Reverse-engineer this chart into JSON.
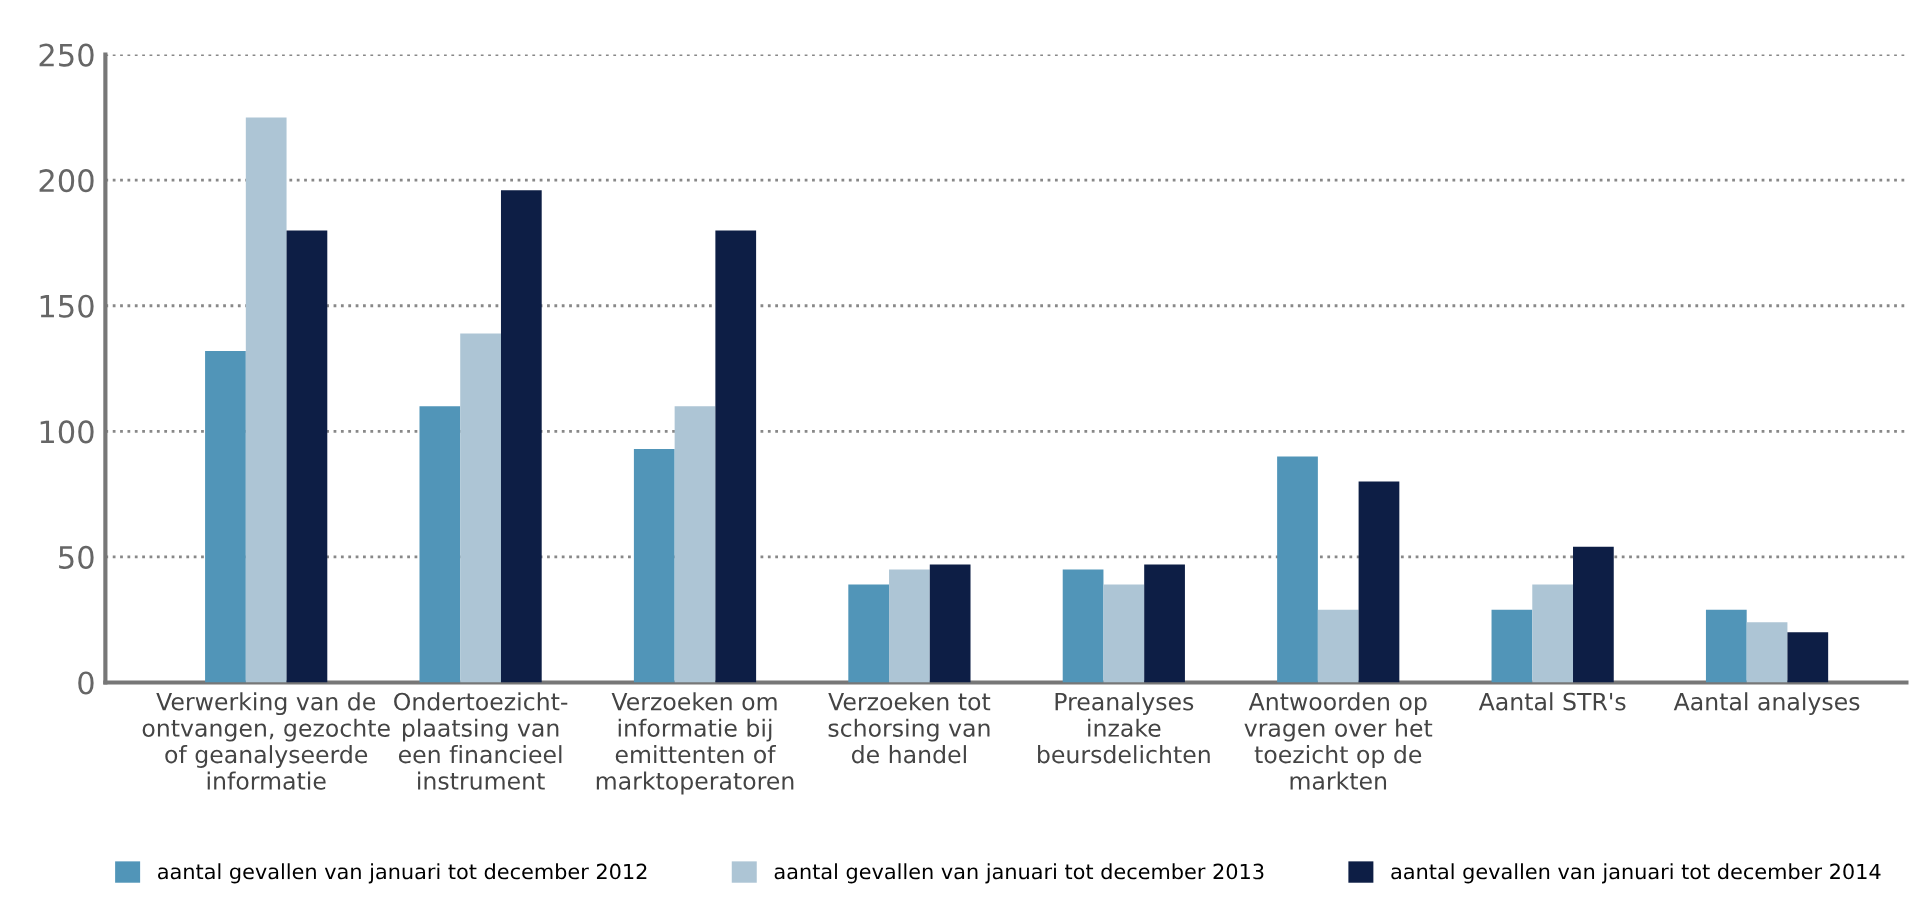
{
  "chart_data": {
    "type": "bar",
    "categories": [
      "Verwerking van de\nontvangen, gezochte\nof geanalyseerde\ninformatie",
      "Ondertoezicht-\nplaatsing van\neen financieel\ninstrument",
      "Verzoeken om\ninformatie bij\nemittenten of\nmarktoperatoren",
      "Verzoeken tot\nschorsing van\nde handel",
      "Preanalyses\ninzake\nbeursdelichten",
      "Antwoorden op\nvragen over het\ntoezicht op de\nmarkten",
      "Aantal STR's",
      "Aantal analyses"
    ],
    "series": [
      {
        "name": "aantal gevallen van januari tot december 2012",
        "color": "#5195b8",
        "values": [
          132,
          110,
          93,
          39,
          45,
          90,
          29,
          29
        ]
      },
      {
        "name": "aantal gevallen van januari tot december 2013",
        "color": "#adc5d5",
        "values": [
          225,
          139,
          110,
          45,
          39,
          29,
          39,
          24
        ]
      },
      {
        "name": "aantal gevallen van januari tot december 2014",
        "color": "#0d1e45",
        "values": [
          180,
          196,
          180,
          47,
          47,
          80,
          54,
          20
        ]
      }
    ],
    "ylim": [
      0,
      250
    ],
    "yticks": [
      0,
      50,
      100,
      150,
      200,
      250
    ],
    "grid": "y",
    "legend": "bottom"
  }
}
